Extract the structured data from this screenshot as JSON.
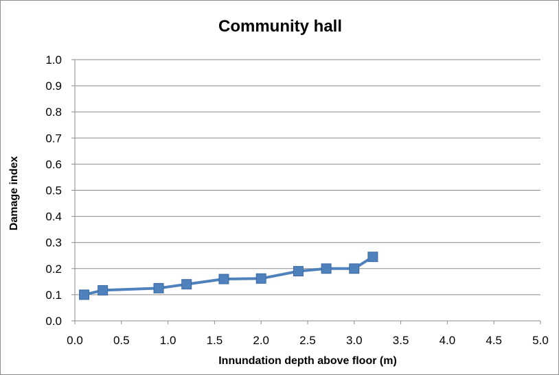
{
  "chart_data": {
    "type": "line",
    "title": "Community hall",
    "xlabel": "Innundation depth above floor (m)",
    "ylabel": "Damage index",
    "xlim": [
      0,
      5
    ],
    "ylim": [
      0,
      1
    ],
    "x_ticks": [
      "0.0",
      "0.5",
      "1.0",
      "1.5",
      "2.0",
      "2.5",
      "3.0",
      "3.5",
      "4.0",
      "4.5",
      "5.0"
    ],
    "y_ticks": [
      "0.0",
      "0.1",
      "0.2",
      "0.3",
      "0.4",
      "0.5",
      "0.6",
      "0.7",
      "0.8",
      "0.9",
      "1.0"
    ],
    "grid": true,
    "legend": "none",
    "series": [
      {
        "color": "#4f81bd",
        "marker": "square",
        "points": [
          {
            "x": 0.1,
            "y": 0.1
          },
          {
            "x": 0.3,
            "y": 0.117
          },
          {
            "x": 0.9,
            "y": 0.125
          },
          {
            "x": 1.2,
            "y": 0.14
          },
          {
            "x": 1.6,
            "y": 0.16
          },
          {
            "x": 2.0,
            "y": 0.162
          },
          {
            "x": 2.4,
            "y": 0.19
          },
          {
            "x": 2.7,
            "y": 0.2
          },
          {
            "x": 3.0,
            "y": 0.2
          },
          {
            "x": 3.2,
            "y": 0.245
          }
        ]
      }
    ]
  }
}
